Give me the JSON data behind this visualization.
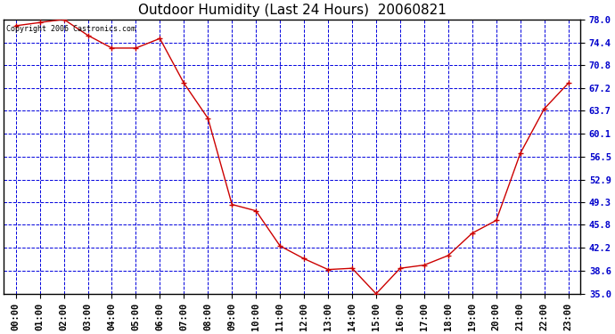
{
  "title": "Outdoor Humidity (Last 24 Hours)  20060821",
  "copyright": "Copyright 2006 Castronics.com",
  "x_labels": [
    "00:00",
    "01:00",
    "02:00",
    "03:00",
    "04:00",
    "05:00",
    "06:00",
    "07:00",
    "08:00",
    "09:00",
    "10:00",
    "11:00",
    "12:00",
    "13:00",
    "14:00",
    "15:00",
    "16:00",
    "17:00",
    "18:00",
    "19:00",
    "20:00",
    "21:00",
    "22:00",
    "23:00"
  ],
  "y_values": [
    77.0,
    77.5,
    78.0,
    75.5,
    73.5,
    73.5,
    75.0,
    68.0,
    62.5,
    49.0,
    48.0,
    42.5,
    40.5,
    38.8,
    39.0,
    35.0,
    39.0,
    39.5,
    41.0,
    44.5,
    46.5,
    57.0,
    64.0,
    68.0
  ],
  "ylim_min": 35.0,
  "ylim_max": 78.0,
  "yticks": [
    35.0,
    38.6,
    42.2,
    45.8,
    49.3,
    52.9,
    56.5,
    60.1,
    63.7,
    67.2,
    70.8,
    74.4,
    78.0
  ],
  "line_color": "#cc0000",
  "marker_color": "#cc0000",
  "plot_bg_color": "#ffffff",
  "fig_bg_color": "#ffffff",
  "grid_color": "#0000dd",
  "border_color": "#000000",
  "title_color": "#000000",
  "tick_label_color": "#0000cc",
  "copyright_color": "#000000",
  "title_fontsize": 11,
  "tick_fontsize": 7.5
}
